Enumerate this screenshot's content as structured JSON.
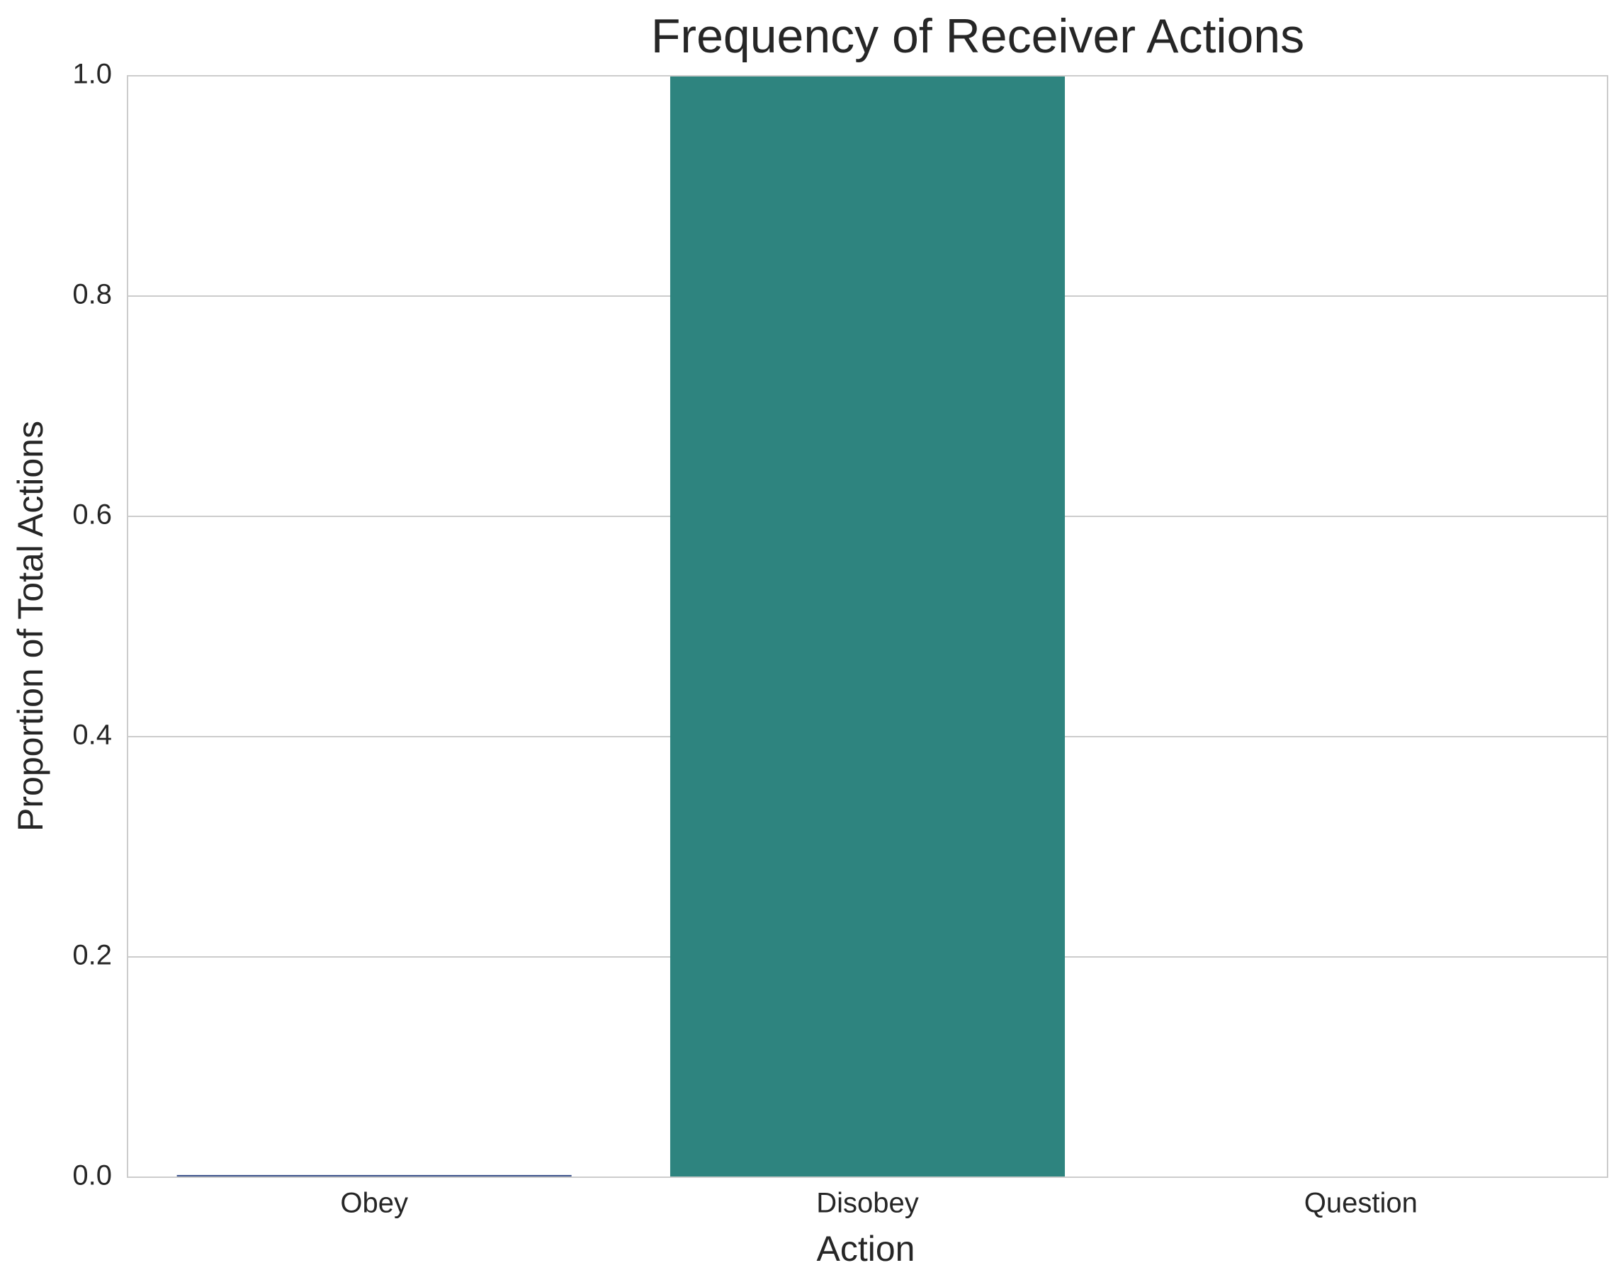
{
  "chart_data": {
    "type": "bar",
    "title": "Frequency of Receiver Actions",
    "x_label": "Action",
    "y_label": "Proportion of Total Actions",
    "categories": [
      "Obey",
      "Disobey",
      "Question"
    ],
    "values": [
      0.002,
      1.0,
      0.0
    ],
    "colors": [
      "#3b528b",
      "#2e847f",
      "#5ec962"
    ],
    "ylim": [
      0,
      1.0
    ],
    "yticks": [
      {
        "value": 0,
        "label": "0.0"
      },
      {
        "value": 0.2,
        "label": "0.2"
      },
      {
        "value": 0.4,
        "label": "0.4"
      },
      {
        "value": 0.6,
        "label": "0.6"
      },
      {
        "value": 0.8,
        "label": "0.8"
      },
      {
        "value": 1.0,
        "label": "1.0"
      }
    ],
    "grid": true
  }
}
